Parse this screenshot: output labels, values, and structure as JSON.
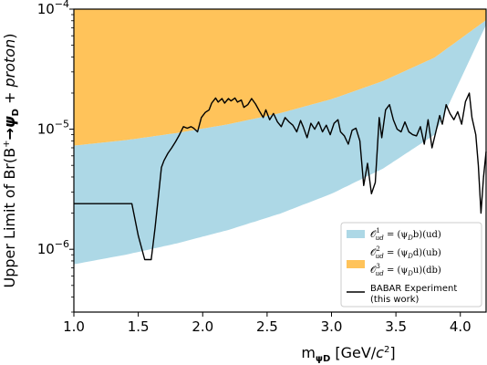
{
  "chart_data": {
    "type": "line",
    "xlabel": "m",
    "xlabel_sub": "ψD",
    "xlabel_unit_pre": " [GeV/",
    "xlabel_unit_c": "c",
    "xlabel_unit_exp": "2",
    "xlabel_unit_post": "]",
    "ylabel_pre": "Upper Limit of Br(B",
    "ylabel_sup": "+",
    "ylabel_arrow": "→",
    "ylabel_psi": "ψ",
    "ylabel_sub": "D",
    "ylabel_mid": " + ",
    "ylabel_italic": "proton",
    "ylabel_post": ")",
    "xlim": [
      1.0,
      4.2
    ],
    "ylim": [
      3e-07,
      0.0001
    ],
    "yscale": "log",
    "x_ticks": [
      "1.0",
      "1.5",
      "2.0",
      "2.5",
      "3.0",
      "3.5",
      "4.0"
    ],
    "y_ticks": [
      {
        "base": "10",
        "exp": "−4",
        "value": 0.0001
      },
      {
        "base": "10",
        "exp": "−5",
        "value": 1e-05
      },
      {
        "base": "10",
        "exp": "−6",
        "value": 1e-06
      }
    ],
    "grid": false,
    "legend_position": "bottom-right",
    "colors": {
      "blue_band": "#add8e6",
      "orange_band": "#ffc35a",
      "experiment": "#000000"
    },
    "legend": {
      "blue": {
        "op": "𝒪",
        "sup": "1",
        "sub": "ud",
        "eq": " = (ψ",
        "eqsub": "D",
        "rest": "b)(ud)"
      },
      "orange1": {
        "op": "𝒪",
        "sup": "2",
        "sub": "ud",
        "eq": " = (ψ",
        "eqsub": "D",
        "rest": "d)(ub)"
      },
      "orange2": {
        "op": "𝒪",
        "sup": "3",
        "sub": "ud",
        "eq": " = (ψ",
        "eqsub": "D",
        "rest": "u)(db)"
      },
      "line1": "BABAR Experiment",
      "line2": "(this work)"
    },
    "bands": {
      "x": [
        1.0,
        1.4,
        1.8,
        2.2,
        2.6,
        3.0,
        3.4,
        3.8,
        4.2
      ],
      "orange_top": [
        0.0001,
        0.0001,
        0.0001,
        0.0001,
        0.0001,
        0.0001,
        0.0001,
        0.0001,
        0.0001
      ],
      "orange_bottom": [
        7.3e-06,
        8.1e-06,
        9.3e-06,
        1.1e-05,
        1.36e-05,
        1.78e-05,
        2.52e-05,
        3.95e-05,
        8.1e-05
      ],
      "blue_top": [
        7.3e-06,
        8.1e-06,
        9.3e-06,
        1.1e-05,
        1.36e-05,
        1.78e-05,
        2.52e-05,
        3.95e-05,
        8.1e-05
      ],
      "blue_bottom": [
        7.5e-07,
        9e-07,
        1.12e-06,
        1.45e-06,
        1.98e-06,
        2.9e-06,
        4.7e-06,
        9e-06,
        7.4e-05
      ]
    },
    "series": [
      {
        "x": [
          1.0,
          1.3,
          1.45,
          1.5,
          1.55,
          1.6,
          1.63,
          1.66,
          1.68,
          1.7,
          1.73,
          1.76,
          1.79,
          1.82,
          1.85,
          1.88,
          1.91,
          1.93,
          1.96,
          1.99,
          2.02,
          2.05,
          2.07,
          2.1,
          2.12,
          2.15,
          2.17,
          2.2,
          2.22,
          2.25,
          2.27,
          2.3,
          2.32,
          2.35,
          2.38,
          2.41,
          2.44,
          2.47,
          2.49,
          2.52,
          2.55,
          2.58,
          2.61,
          2.64,
          2.67,
          2.7,
          2.73,
          2.76,
          2.78,
          2.81,
          2.84,
          2.87,
          2.9,
          2.93,
          2.96,
          2.99,
          3.02,
          3.05,
          3.07,
          3.1,
          3.13,
          3.16,
          3.19,
          3.22,
          3.25,
          3.28,
          3.31,
          3.34,
          3.37,
          3.39,
          3.42,
          3.45,
          3.48,
          3.51,
          3.54,
          3.57,
          3.6,
          3.63,
          3.66,
          3.69,
          3.72,
          3.75,
          3.78,
          3.81,
          3.84,
          3.86,
          3.89,
          3.92,
          3.95,
          3.98,
          4.01,
          4.04,
          4.07,
          4.09,
          4.12,
          4.14,
          4.16,
          4.18,
          4.2
        ],
        "y": [
          2.4e-06,
          2.4e-06,
          2.4e-06,
          1.3e-06,
          8.2e-07,
          8.2e-07,
          1.5e-06,
          3e-06,
          4.8e-06,
          5.5e-06,
          6.3e-06,
          7e-06,
          7.9e-06,
          9e-06,
          1.05e-05,
          1.02e-05,
          1.05e-05,
          1.02e-05,
          9.5e-06,
          1.25e-05,
          1.38e-05,
          1.45e-05,
          1.65e-05,
          1.82e-05,
          1.68e-05,
          1.8e-05,
          1.65e-05,
          1.8e-05,
          1.72e-05,
          1.82e-05,
          1.68e-05,
          1.75e-05,
          1.52e-05,
          1.6e-05,
          1.8e-05,
          1.62e-05,
          1.42e-05,
          1.25e-05,
          1.45e-05,
          1.2e-05,
          1.35e-05,
          1.15e-05,
          1.05e-05,
          1.25e-05,
          1.15e-05,
          1.08e-05,
          9.5e-06,
          1.18e-05,
          1.05e-05,
          8.5e-06,
          1.12e-05,
          1e-05,
          1.15e-05,
          9.5e-06,
          1.08e-05,
          9e-06,
          1.12e-05,
          1.2e-05,
          9.5e-06,
          8.8e-06,
          7.5e-06,
          9.8e-06,
          1.02e-05,
          8e-06,
          3.4e-06,
          5.2e-06,
          2.9e-06,
          3.6e-06,
          1.25e-05,
          8.5e-06,
          1.45e-05,
          1.6e-05,
          1.2e-05,
          1e-05,
          9.5e-06,
          1.15e-05,
          9.5e-06,
          9e-06,
          8.8e-06,
          1.05e-05,
          7.5e-06,
          1.2e-05,
          7e-06,
          9.5e-06,
          1.3e-05,
          1.1e-05,
          1.6e-05,
          1.35e-05,
          1.2e-05,
          1.4e-05,
          1.1e-05,
          1.7e-05,
          2e-05,
          1.25e-05,
          9e-06,
          5e-06,
          2e-06,
          4e-06,
          6.5e-06
        ]
      }
    ]
  }
}
